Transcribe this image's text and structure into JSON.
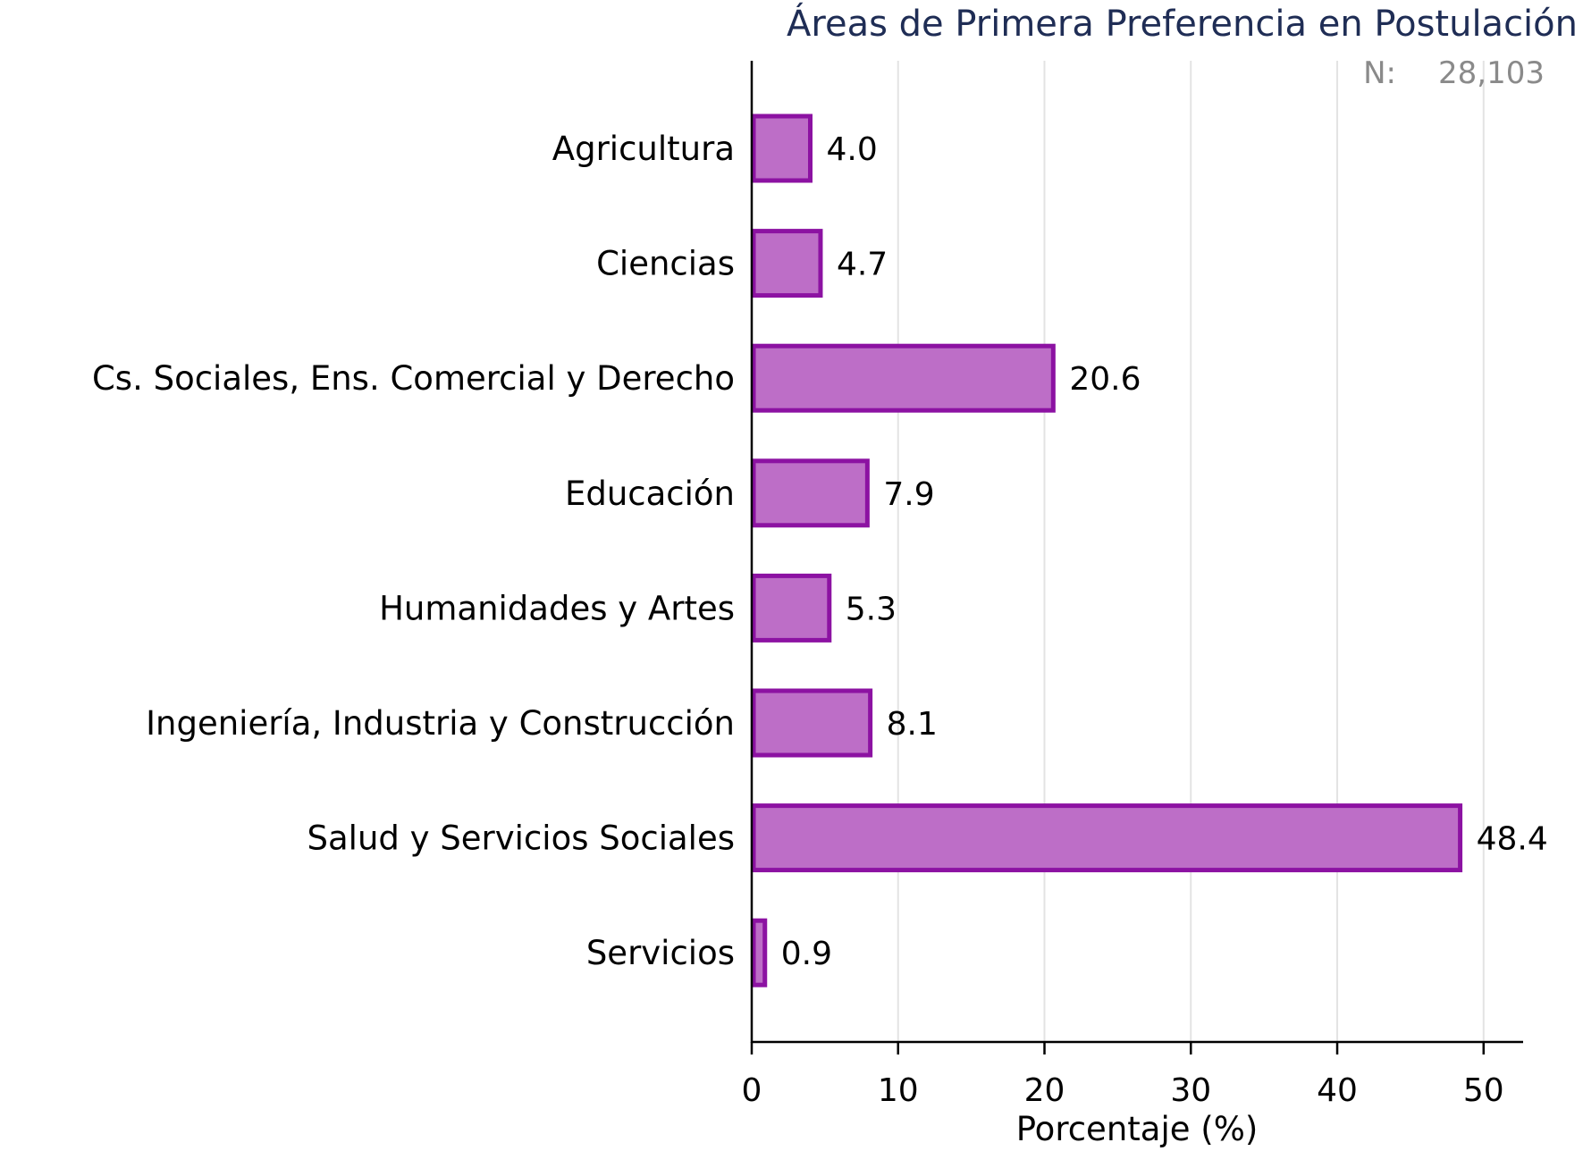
{
  "colors": {
    "bar_fill": "#bd6ec7",
    "bar_stroke": "#8c12a2",
    "title": "#1f2d55",
    "n_text": "#8a8a8a",
    "grid": "#e3e3e3",
    "axis": "#000000"
  },
  "chart_data": {
    "type": "bar",
    "orientation": "horizontal",
    "title": "Áreas de Primera Preferencia en Postulación",
    "n_label": "N:",
    "n_value": "28,103",
    "categories": [
      "Agricultura",
      "Ciencias",
      "Cs. Sociales, Ens. Comercial y Derecho",
      "Educación",
      "Humanidades y Artes",
      "Ingeniería, Industria y Construcción",
      "Salud y Servicios Sociales",
      "Servicios"
    ],
    "values": [
      4.0,
      4.7,
      20.6,
      7.9,
      5.3,
      8.1,
      48.4,
      0.9
    ],
    "value_labels": [
      "4.0",
      "4.7",
      "20.6",
      "7.9",
      "5.3",
      "8.1",
      "48.4",
      "0.9"
    ],
    "xlabel": "Porcentaje (%)",
    "ylabel": "",
    "xlim": [
      0,
      52.7
    ],
    "xticks": [
      0,
      10,
      20,
      30,
      40,
      50
    ],
    "xtick_labels": [
      "0",
      "10",
      "20",
      "30",
      "40",
      "50"
    ],
    "grid": "vertical",
    "legend": "none"
  }
}
